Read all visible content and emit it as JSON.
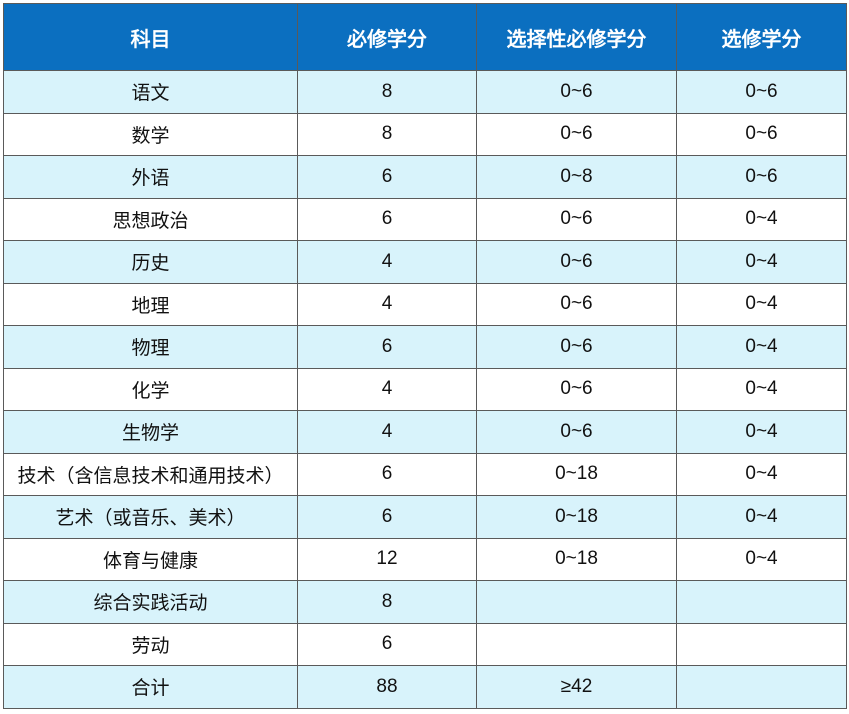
{
  "table": {
    "header": [
      "科目",
      "必修学分",
      "选择性必修学分",
      "选修学分"
    ],
    "rows": [
      [
        "语文",
        "8",
        "0~6",
        "0~6"
      ],
      [
        "数学",
        "8",
        "0~6",
        "0~6"
      ],
      [
        "外语",
        "6",
        "0~8",
        "0~6"
      ],
      [
        "思想政治",
        "6",
        "0~6",
        "0~4"
      ],
      [
        "历史",
        "4",
        "0~6",
        "0~4"
      ],
      [
        "地理",
        "4",
        "0~6",
        "0~4"
      ],
      [
        "物理",
        "6",
        "0~6",
        "0~4"
      ],
      [
        "化学",
        "4",
        "0~6",
        "0~4"
      ],
      [
        "生物学",
        "4",
        "0~6",
        "0~4"
      ],
      [
        "技术（含信息技术和通用技术）",
        "6",
        "0~18",
        "0~4"
      ],
      [
        "艺术（或音乐、美术）",
        "6",
        "0~18",
        "0~4"
      ],
      [
        "体育与健康",
        "12",
        "0~18",
        "0~4"
      ],
      [
        "综合实践活动",
        "8"
      ],
      [
        "劳动",
        "6"
      ],
      [
        "合计",
        "88",
        "≥42"
      ]
    ]
  }
}
